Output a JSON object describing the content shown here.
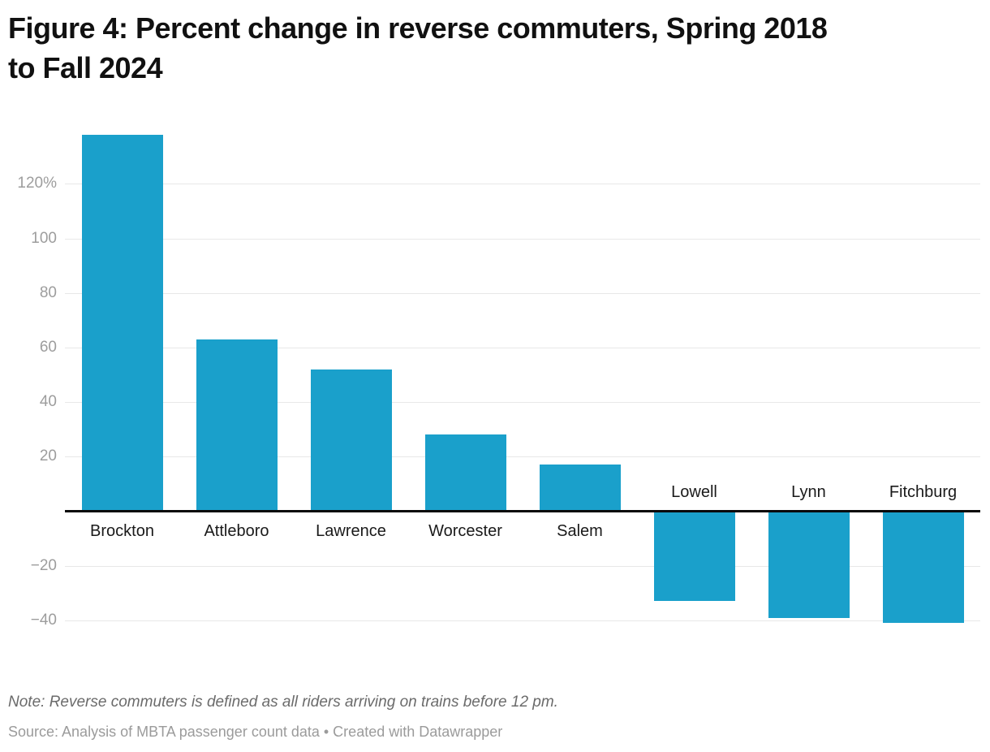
{
  "header": {
    "title_line1": "Figure 4: Percent change in reverse commuters, Spring 2018",
    "title_line2": "to Fall 2024"
  },
  "footer": {
    "note": "Note: Reverse commuters is defined as all riders arriving on trains before 12 pm.",
    "source": "Source: Analysis of MBTA passenger count data • Created with Datawrapper"
  },
  "colors": {
    "background": "#ffffff",
    "bar": "#1aa0cb",
    "gridline": "#e8e8e8",
    "axis_line": "#0a0a0a",
    "tick_label": "#9d9d9d",
    "bar_label": "#1a1a1a",
    "title_text": "#111111",
    "note_text": "#6b6b6b",
    "source_text": "#9b9b9b"
  },
  "chart_data": {
    "type": "bar",
    "title": "Figure 4: Percent change in reverse commuters, Spring 2018 to Fall 2024",
    "categories": [
      "Brockton",
      "Attleboro",
      "Lawrence",
      "Worcester",
      "Salem",
      "Lowell",
      "Lynn",
      "Fitchburg"
    ],
    "values": [
      138,
      63,
      52,
      28,
      17,
      -33,
      -39,
      -41
    ],
    "unit": "%",
    "xlabel": "",
    "ylabel": "",
    "ylim": [
      -48,
      140
    ],
    "yticks": [
      {
        "value": 120,
        "label": "120%"
      },
      {
        "value": 100,
        "label": "100"
      },
      {
        "value": 80,
        "label": "80"
      },
      {
        "value": 60,
        "label": "60"
      },
      {
        "value": 40,
        "label": "40"
      },
      {
        "value": 20,
        "label": "20"
      },
      {
        "value": -20,
        "label": "−20"
      },
      {
        "value": -40,
        "label": "−40"
      }
    ],
    "grid": true,
    "legend": false,
    "baseline": 0,
    "note": "Note: Reverse commuters is defined as all riders arriving on trains before 12 pm.",
    "source": "Source: Analysis of MBTA passenger count data • Created with Datawrapper"
  }
}
